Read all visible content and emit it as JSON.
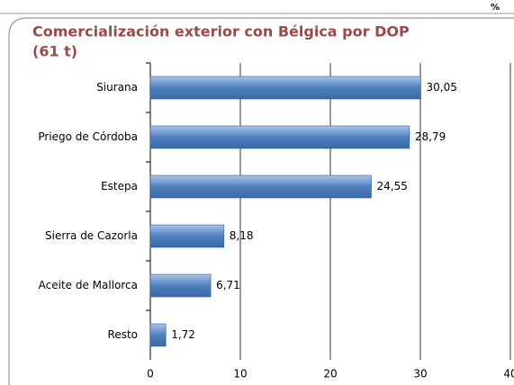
{
  "chart_data": {
    "type": "bar",
    "orientation": "horizontal",
    "title_line1": "Comercialización exterior con Bélgica por DOP",
    "title_line2": "(61 t)",
    "unit": "%",
    "categories": [
      "Siurana",
      "Priego de Córdoba",
      "Estepa",
      "Sierra de Cazorla",
      "Aceite de Mallorca",
      "Resto"
    ],
    "values": [
      30.05,
      28.79,
      24.55,
      8.18,
      6.71,
      1.72
    ],
    "value_labels": [
      "30,05",
      "28,79",
      "24,55",
      "8,18",
      "6,71",
      "1,72"
    ],
    "color": "#4f81bd",
    "title_color": "#9b4a47",
    "xlim": [
      0,
      40
    ],
    "xticks": [
      0,
      10,
      20,
      30,
      40
    ],
    "grid": true
  }
}
